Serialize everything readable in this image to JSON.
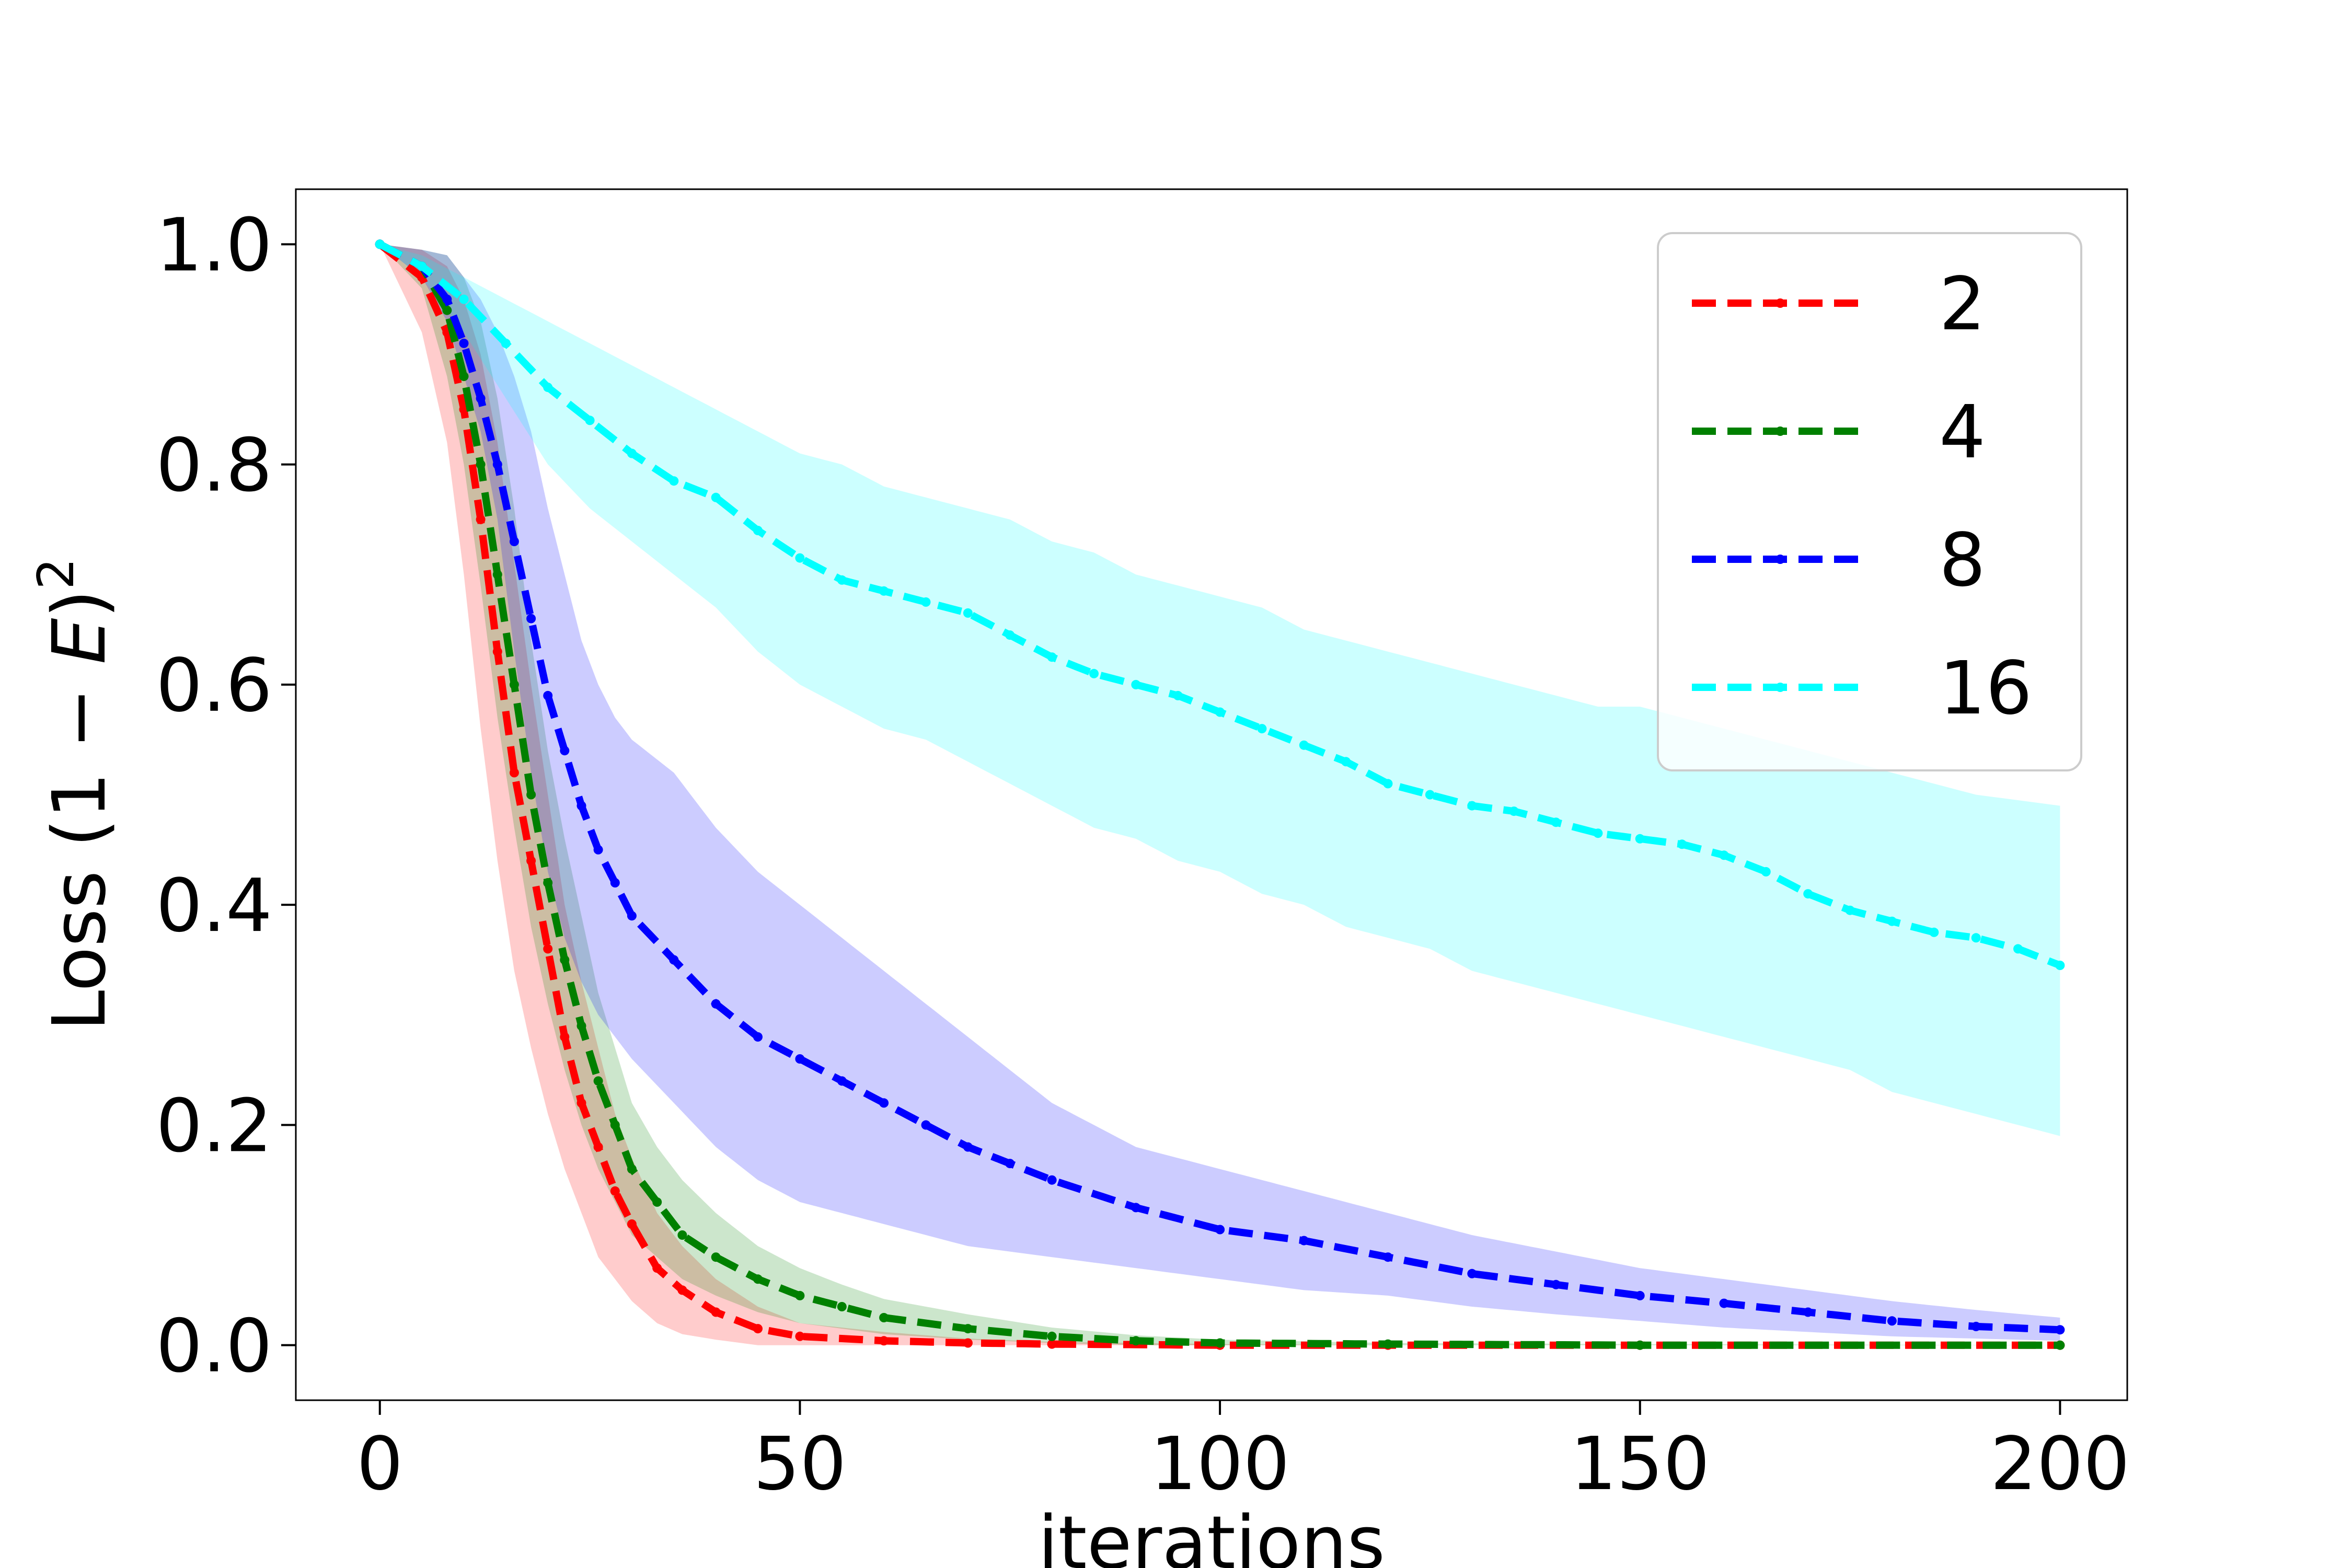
{
  "chart_data": {
    "type": "line",
    "title": "",
    "xlabel": "iterations",
    "ylabel": {
      "prefix": "Loss (1 − ",
      "var": "E",
      "suffix": ")",
      "sup": "2"
    },
    "xlim": [
      -10,
      208
    ],
    "ylim": [
      -0.05,
      1.05
    ],
    "xticks": [
      0,
      50,
      100,
      150,
      200
    ],
    "xtick_labels": [
      "0",
      "50",
      "100",
      "150",
      "200"
    ],
    "yticks": [
      0.0,
      0.2,
      0.4,
      0.6,
      0.8,
      1.0
    ],
    "ytick_labels": [
      "0.0",
      "0.2",
      "0.4",
      "0.6",
      "0.8",
      "1.0"
    ],
    "grid": false,
    "legend": {
      "placement": "top-right",
      "entries": [
        "2",
        "4",
        "8",
        "16"
      ]
    },
    "series": [
      {
        "name": "2",
        "color": "#ff0000",
        "band_color": "#ff0000",
        "x": [
          0,
          5,
          8,
          10,
          12,
          14,
          16,
          18,
          20,
          22,
          24,
          26,
          28,
          30,
          33,
          36,
          40,
          45,
          50,
          60,
          70,
          80,
          100,
          120,
          150,
          200
        ],
        "y": [
          1.0,
          0.97,
          0.92,
          0.85,
          0.75,
          0.63,
          0.52,
          0.44,
          0.36,
          0.28,
          0.22,
          0.18,
          0.14,
          0.11,
          0.07,
          0.05,
          0.03,
          0.015,
          0.008,
          0.004,
          0.002,
          0.001,
          0.0,
          0.0,
          0.0,
          0.0
        ],
        "lower": [
          1.0,
          0.92,
          0.82,
          0.7,
          0.56,
          0.44,
          0.34,
          0.27,
          0.21,
          0.16,
          0.12,
          0.08,
          0.06,
          0.04,
          0.02,
          0.01,
          0.005,
          0.0,
          0.0,
          0.0,
          0.0,
          0.0,
          0.0,
          0.0,
          0.0,
          0.0
        ],
        "upper": [
          1.0,
          0.995,
          0.98,
          0.95,
          0.9,
          0.82,
          0.71,
          0.6,
          0.5,
          0.4,
          0.33,
          0.27,
          0.21,
          0.17,
          0.12,
          0.09,
          0.06,
          0.035,
          0.02,
          0.012,
          0.006,
          0.003,
          0.001,
          0.0,
          0.0,
          0.0
        ]
      },
      {
        "name": "4",
        "color": "#008000",
        "band_color": "#008000",
        "x": [
          0,
          5,
          8,
          10,
          12,
          14,
          16,
          18,
          20,
          22,
          24,
          26,
          28,
          30,
          33,
          36,
          40,
          45,
          50,
          55,
          60,
          70,
          80,
          90,
          100,
          120,
          150,
          200
        ],
        "y": [
          1.0,
          0.98,
          0.94,
          0.88,
          0.8,
          0.7,
          0.6,
          0.5,
          0.42,
          0.35,
          0.29,
          0.24,
          0.2,
          0.16,
          0.13,
          0.1,
          0.08,
          0.06,
          0.045,
          0.035,
          0.025,
          0.015,
          0.008,
          0.004,
          0.002,
          0.001,
          0.0,
          0.0
        ],
        "lower": [
          1.0,
          0.96,
          0.88,
          0.8,
          0.69,
          0.57,
          0.47,
          0.38,
          0.31,
          0.25,
          0.2,
          0.16,
          0.13,
          0.1,
          0.08,
          0.06,
          0.045,
          0.03,
          0.02,
          0.015,
          0.01,
          0.005,
          0.002,
          0.0,
          0.0,
          0.0,
          0.0,
          0.0
        ],
        "upper": [
          1.0,
          0.995,
          0.99,
          0.97,
          0.93,
          0.86,
          0.76,
          0.64,
          0.54,
          0.46,
          0.39,
          0.32,
          0.27,
          0.22,
          0.18,
          0.15,
          0.12,
          0.09,
          0.07,
          0.055,
          0.042,
          0.028,
          0.016,
          0.009,
          0.005,
          0.002,
          0.001,
          0.0
        ]
      },
      {
        "name": "8",
        "color": "#0000ff",
        "band_color": "#0000ff",
        "x": [
          0,
          5,
          8,
          10,
          12,
          14,
          16,
          18,
          20,
          22,
          24,
          26,
          28,
          30,
          35,
          40,
          45,
          50,
          55,
          60,
          65,
          70,
          75,
          80,
          90,
          100,
          110,
          120,
          130,
          140,
          150,
          160,
          170,
          180,
          190,
          200
        ],
        "y": [
          1.0,
          0.98,
          0.95,
          0.91,
          0.86,
          0.8,
          0.73,
          0.66,
          0.59,
          0.54,
          0.49,
          0.45,
          0.42,
          0.39,
          0.35,
          0.31,
          0.28,
          0.26,
          0.24,
          0.22,
          0.2,
          0.18,
          0.165,
          0.15,
          0.125,
          0.105,
          0.095,
          0.08,
          0.065,
          0.055,
          0.045,
          0.038,
          0.03,
          0.022,
          0.017,
          0.014
        ],
        "lower": [
          1.0,
          0.97,
          0.93,
          0.88,
          0.83,
          0.75,
          0.63,
          0.52,
          0.43,
          0.37,
          0.33,
          0.3,
          0.28,
          0.26,
          0.22,
          0.18,
          0.15,
          0.13,
          0.12,
          0.11,
          0.1,
          0.09,
          0.085,
          0.08,
          0.07,
          0.06,
          0.05,
          0.045,
          0.035,
          0.028,
          0.022,
          0.016,
          0.012,
          0.008,
          0.006,
          0.004
        ],
        "upper": [
          1.0,
          0.995,
          0.99,
          0.97,
          0.95,
          0.92,
          0.88,
          0.83,
          0.76,
          0.7,
          0.64,
          0.6,
          0.57,
          0.55,
          0.52,
          0.47,
          0.43,
          0.4,
          0.37,
          0.34,
          0.31,
          0.28,
          0.25,
          0.22,
          0.18,
          0.16,
          0.14,
          0.12,
          0.1,
          0.085,
          0.07,
          0.06,
          0.05,
          0.04,
          0.032,
          0.025
        ]
      },
      {
        "name": "16",
        "color": "#00ffff",
        "band_color": "#00ffff",
        "x": [
          0,
          5,
          10,
          15,
          20,
          25,
          30,
          35,
          40,
          45,
          50,
          55,
          60,
          65,
          70,
          75,
          80,
          85,
          90,
          95,
          100,
          105,
          110,
          115,
          120,
          125,
          130,
          135,
          140,
          145,
          150,
          155,
          160,
          165,
          170,
          175,
          180,
          185,
          190,
          195,
          200
        ],
        "y": [
          1.0,
          0.98,
          0.95,
          0.91,
          0.87,
          0.84,
          0.81,
          0.785,
          0.77,
          0.74,
          0.715,
          0.695,
          0.685,
          0.675,
          0.665,
          0.645,
          0.625,
          0.61,
          0.6,
          0.59,
          0.575,
          0.56,
          0.545,
          0.53,
          0.51,
          0.5,
          0.49,
          0.485,
          0.475,
          0.465,
          0.46,
          0.455,
          0.445,
          0.43,
          0.41,
          0.395,
          0.385,
          0.375,
          0.37,
          0.36,
          0.345
        ],
        "lower": [
          1.0,
          0.97,
          0.92,
          0.86,
          0.8,
          0.76,
          0.73,
          0.7,
          0.67,
          0.63,
          0.6,
          0.58,
          0.56,
          0.55,
          0.53,
          0.51,
          0.49,
          0.47,
          0.46,
          0.44,
          0.43,
          0.41,
          0.4,
          0.38,
          0.37,
          0.36,
          0.34,
          0.33,
          0.32,
          0.31,
          0.3,
          0.29,
          0.28,
          0.27,
          0.26,
          0.25,
          0.23,
          0.22,
          0.21,
          0.2,
          0.19
        ],
        "upper": [
          1.0,
          0.99,
          0.97,
          0.95,
          0.93,
          0.91,
          0.89,
          0.87,
          0.85,
          0.83,
          0.81,
          0.8,
          0.78,
          0.77,
          0.76,
          0.75,
          0.73,
          0.72,
          0.7,
          0.69,
          0.68,
          0.67,
          0.65,
          0.64,
          0.63,
          0.62,
          0.61,
          0.6,
          0.59,
          0.58,
          0.58,
          0.57,
          0.56,
          0.55,
          0.54,
          0.53,
          0.52,
          0.51,
          0.5,
          0.495,
          0.49
        ]
      }
    ]
  }
}
